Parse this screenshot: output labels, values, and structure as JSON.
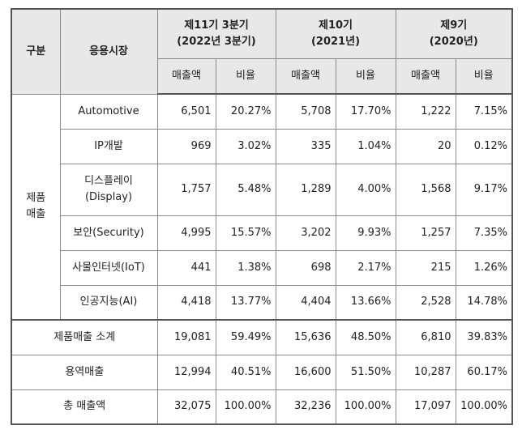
{
  "header": {
    "category": "구분",
    "market": "응용시장",
    "periods": [
      {
        "line1": "제11기 3분기",
        "line2": "(2022년 3분기)"
      },
      {
        "line1": "제10기",
        "line2": "(2021년)"
      },
      {
        "line1": "제9기",
        "line2": "(2020년)"
      }
    ],
    "sales_label": "매출액",
    "ratio_label": "비율"
  },
  "product_group": {
    "label_line1": "제품",
    "label_line2": "매출"
  },
  "rows": [
    {
      "market_line1": "Automotive",
      "market_line2": "",
      "values": [
        "6,501",
        "20.27%",
        "5,708",
        "17.70%",
        "1,222",
        "7.15%"
      ]
    },
    {
      "market_line1": "IP개발",
      "market_line2": "",
      "values": [
        "969",
        "3.02%",
        "335",
        "1.04%",
        "20",
        "0.12%"
      ]
    },
    {
      "market_line1": "디스플레이",
      "market_line2": "(Display)",
      "values": [
        "1,757",
        "5.48%",
        "1,289",
        "4.00%",
        "1,568",
        "9.17%"
      ]
    },
    {
      "market_line1": "보안(Security)",
      "market_line2": "",
      "values": [
        "4,995",
        "15.57%",
        "3,202",
        "9.93%",
        "1,257",
        "7.35%"
      ]
    },
    {
      "market_line1": "사물인터넷(IoT)",
      "market_line2": "",
      "values": [
        "441",
        "1.38%",
        "698",
        "2.17%",
        "215",
        "1.26%"
      ]
    },
    {
      "market_line1": "인공지능(AI)",
      "market_line2": "",
      "values": [
        "4,418",
        "13.77%",
        "4,404",
        "13.66%",
        "2,528",
        "14.78%"
      ]
    }
  ],
  "summary_rows": [
    {
      "label": "제품매출 소계",
      "values": [
        "19,081",
        "59.49%",
        "15,636",
        "48.50%",
        "6,810",
        "39.83%"
      ]
    },
    {
      "label": "용역매출",
      "values": [
        "12,994",
        "40.51%",
        "16,600",
        "51.50%",
        "10,287",
        "60.17%"
      ]
    },
    {
      "label": "총 매출액",
      "values": [
        "32,075",
        "100.00%",
        "32,236",
        "100.00%",
        "17,097",
        "100.00%"
      ]
    }
  ]
}
